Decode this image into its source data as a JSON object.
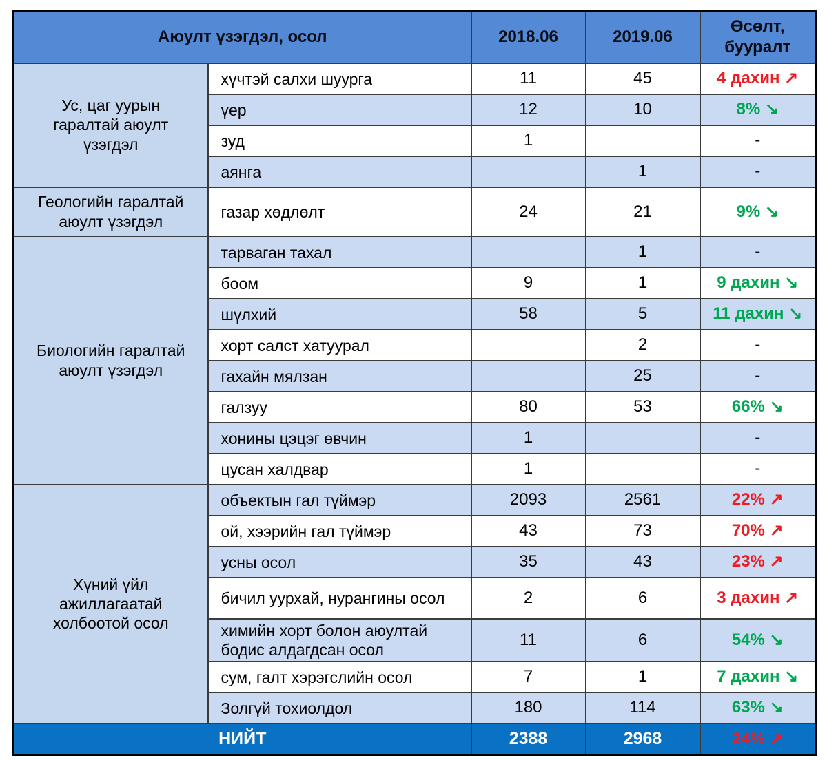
{
  "colors": {
    "header_bg": "#5389d5",
    "category_bg": "#c5d7ee",
    "stripe_bg": "#c9daf2",
    "total_bg": "#0a72c5",
    "increase_red": "#ec1c24",
    "decrease_green": "#00a651"
  },
  "table": {
    "header": {
      "title_col": "Аюулт үзэгдэл, осол",
      "col_2018": "2018.06",
      "col_2019": "2019.06",
      "col_change": "Өсөлт, бууралт"
    },
    "sections": [
      {
        "category": "Ус, цаг уурын гаралтай аюулт үзэгдэл",
        "rows": [
          {
            "label": "хүчтэй салхи шуурга",
            "v2018": "11",
            "v2019": "45",
            "change": "4 дахин ↗",
            "trend": "up"
          },
          {
            "label": "үер",
            "v2018": "12",
            "v2019": "10",
            "change": "8% ↘",
            "trend": "down"
          },
          {
            "label": "зуд",
            "v2018": "1",
            "v2019": "",
            "change": "-",
            "trend": "none"
          },
          {
            "label": "аянга",
            "v2018": "",
            "v2019": "1",
            "change": "-",
            "trend": "none"
          }
        ]
      },
      {
        "category": "Геологийн гаралтай аюулт үзэгдэл",
        "rows": [
          {
            "label": "газар хөдлөлт",
            "v2018": "24",
            "v2019": "21",
            "change": "9% ↘",
            "trend": "down"
          }
        ]
      },
      {
        "category": "Биологийн гаралтай аюулт үзэгдэл",
        "rows": [
          {
            "label": "тарваган тахал",
            "v2018": "",
            "v2019": "1",
            "change": "-",
            "trend": "none"
          },
          {
            "label": "боом",
            "v2018": "9",
            "v2019": "1",
            "change": "9 дахин ↘",
            "trend": "down"
          },
          {
            "label": "шүлхий",
            "v2018": "58",
            "v2019": "5",
            "change": "11 дахин ↘",
            "trend": "down"
          },
          {
            "label": "хорт салст хатуурал",
            "v2018": "",
            "v2019": "2",
            "change": "-",
            "trend": "none"
          },
          {
            "label": "гахайн мялзан",
            "v2018": "",
            "v2019": "25",
            "change": "-",
            "trend": "none"
          },
          {
            "label": "галзуу",
            "v2018": "80",
            "v2019": "53",
            "change": "66% ↘",
            "trend": "down"
          },
          {
            "label": "хонины цэцэг өвчин",
            "v2018": "1",
            "v2019": "",
            "change": "-",
            "trend": "none"
          },
          {
            "label": "цусан халдвар",
            "v2018": "1",
            "v2019": "",
            "change": "-",
            "trend": "none"
          }
        ]
      },
      {
        "category": "Хүний үйл ажиллагаатай холбоотой осол",
        "rows": [
          {
            "label": "объектын гал түймэр",
            "v2018": "2093",
            "v2019": "2561",
            "change": "22% ↗",
            "trend": "up"
          },
          {
            "label": "ой, хээрийн гал түймэр",
            "v2018": "43",
            "v2019": "73",
            "change": "70% ↗",
            "trend": "up"
          },
          {
            "label": "усны осол",
            "v2018": "35",
            "v2019": "43",
            "change": "23% ↗",
            "trend": "up"
          },
          {
            "label": "бичил уурхай, нурангины осол",
            "v2018": "2",
            "v2019": "6",
            "change": "3 дахин ↗",
            "trend": "up"
          },
          {
            "label": "химийн хорт болон аюултай бодис алдагдсан осол",
            "v2018": "11",
            "v2019": "6",
            "change": "54% ↘",
            "trend": "down"
          },
          {
            "label": "сум, галт хэрэгслийн осол",
            "v2018": "7",
            "v2019": "1",
            "change": "7 дахин ↘",
            "trend": "down"
          },
          {
            "label": "Золгүй тохиолдол",
            "v2018": "180",
            "v2019": "114",
            "change": "63% ↘",
            "trend": "down"
          }
        ]
      }
    ],
    "footer": {
      "label": "НИЙТ",
      "v2018": "2388",
      "v2019": "2968",
      "change": "24% ↗",
      "trend": "up"
    }
  },
  "chart_data": {
    "type": "table",
    "title": "Аюулт үзэгдэл, осол",
    "columns": [
      "Аюулт үзэгдэл, осол",
      "2018.06",
      "2019.06",
      "Өсөлт, бууралт"
    ],
    "rows": [
      [
        "Ус, цаг уурын гаралтай аюулт үзэгдэл",
        "хүчтэй салхи шуурга",
        11,
        45,
        "4 дахин ↗"
      ],
      [
        "Ус, цаг уурын гаралтай аюулт үзэгдэл",
        "үер",
        12,
        10,
        "8% ↘"
      ],
      [
        "Ус, цаг уурын гаралтай аюулт үзэгдэл",
        "зуд",
        1,
        null,
        "-"
      ],
      [
        "Ус, цаг уурын гаралтай аюулт үзэгдэл",
        "аянга",
        null,
        1,
        "-"
      ],
      [
        "Геологийн гаралтай аюулт үзэгдэл",
        "газар хөдлөлт",
        24,
        21,
        "9% ↘"
      ],
      [
        "Биологийн гаралтай аюулт үзэгдэл",
        "тарваган тахал",
        null,
        1,
        "-"
      ],
      [
        "Биологийн гаралтай аюулт үзэгдэл",
        "боом",
        9,
        1,
        "9 дахин ↘"
      ],
      [
        "Биологийн гаралтай аюулт үзэгдэл",
        "шүлхий",
        58,
        5,
        "11 дахин ↘"
      ],
      [
        "Биологийн гаралтай аюулт үзэгдэл",
        "хорт салст хатуурал",
        null,
        2,
        "-"
      ],
      [
        "Биологийн гаралтай аюулт үзэгдэл",
        "гахайн мялзан",
        null,
        25,
        "-"
      ],
      [
        "Биологийн гаралтай аюулт үзэгдэл",
        "галзуу",
        80,
        53,
        "66% ↘"
      ],
      [
        "Биологийн гаралтай аюулт үзэгдэл",
        "хонины цэцэг өвчин",
        1,
        null,
        "-"
      ],
      [
        "Биологийн гаралтай аюулт үзэгдэл",
        "цусан халдвар",
        1,
        null,
        "-"
      ],
      [
        "Хүний үйл ажиллагаатай холбоотой осол",
        "объектын гал түймэр",
        2093,
        2561,
        "22% ↗"
      ],
      [
        "Хүний үйл ажиллагаатай холбоотой осол",
        "ой, хээрийн гал түймэр",
        43,
        73,
        "70% ↗"
      ],
      [
        "Хүний үйл ажиллагаатай холбоотой осол",
        "усны осол",
        35,
        43,
        "23% ↗"
      ],
      [
        "Хүний үйл ажиллагаатай холбоотой осол",
        "бичил уурхай, нурангины осол",
        2,
        6,
        "3 дахин ↗"
      ],
      [
        "Хүний үйл ажиллагаатай холбоотой осол",
        "химийн хорт болон аюултай бодис алдагдсан осол",
        11,
        6,
        "54% ↘"
      ],
      [
        "Хүний үйл ажиллагаатай холбоотой осол",
        "сум, галт хэрэгслийн осол",
        7,
        1,
        "7 дахин ↘"
      ],
      [
        "Хүний үйл ажиллагаатай холбоотой осол",
        "Золгүй тохиолдол",
        180,
        114,
        "63% ↘"
      ],
      [
        "НИЙТ",
        "",
        2388,
        2968,
        "24% ↗"
      ]
    ]
  }
}
